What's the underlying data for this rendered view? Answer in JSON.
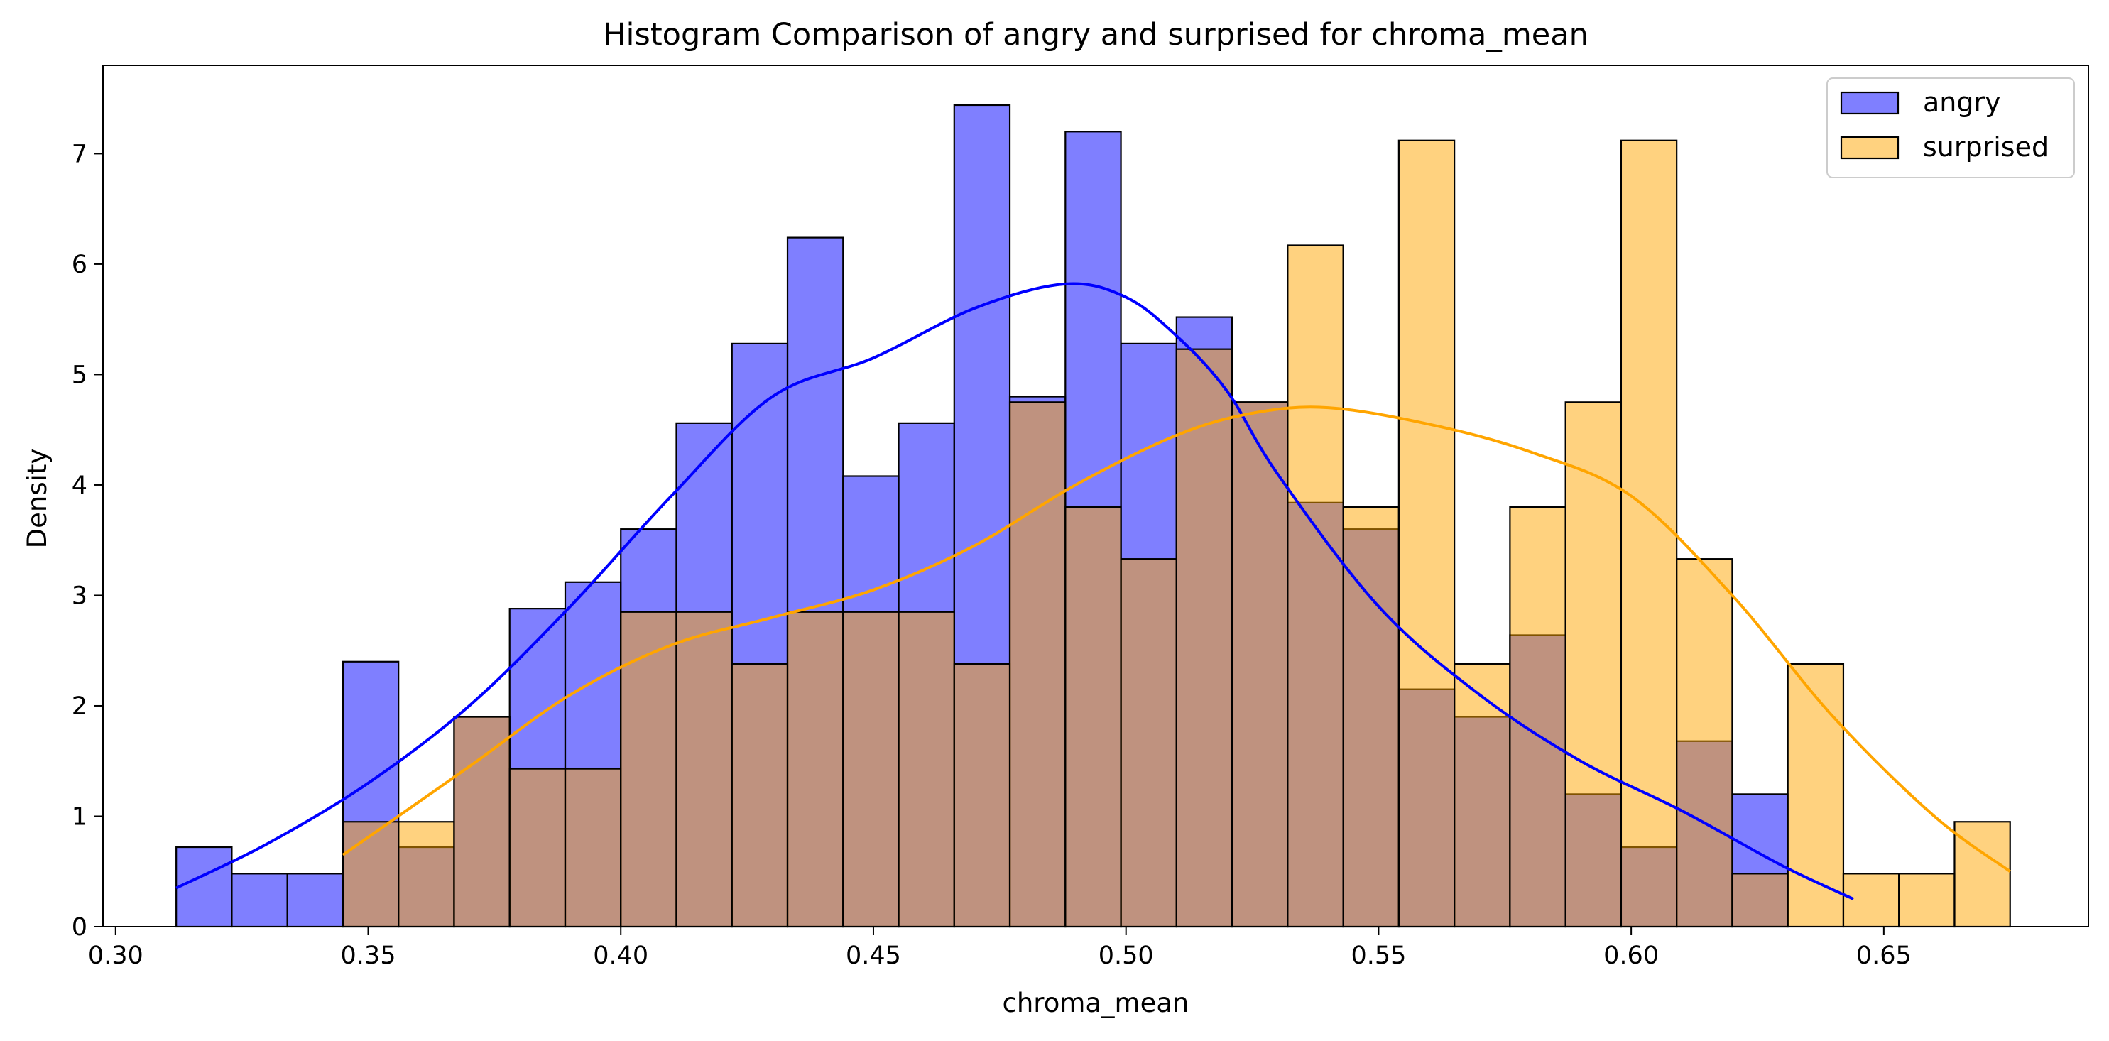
{
  "chart_data": {
    "type": "histogram",
    "title": "Histogram Comparison of angry and surprised for chroma_mean",
    "xlabel": "chroma_mean",
    "ylabel": "Density",
    "xlim": [
      0.2975,
      0.6905
    ],
    "ylim": [
      0,
      7.8
    ],
    "xticks": [
      "0.30",
      "0.35",
      "0.40",
      "0.45",
      "0.50",
      "0.55",
      "0.60",
      "0.65"
    ],
    "yticks": [
      "0",
      "1",
      "2",
      "3",
      "4",
      "5",
      "6",
      "7"
    ],
    "legend_position": "top-right",
    "grid": false,
    "series": [
      {
        "name": "angry",
        "color": "#0000ff",
        "fill": "rgba(0,0,255,0.5)",
        "bin_start": 0.312,
        "bin_width": 0.011,
        "values": [
          0.72,
          0.48,
          0.48,
          2.4,
          0.72,
          1.9,
          2.88,
          3.12,
          3.6,
          4.56,
          5.28,
          6.24,
          4.08,
          4.56,
          7.44,
          4.8,
          7.2,
          5.28,
          5.52,
          4.75,
          3.84,
          3.6,
          2.15,
          1.9,
          2.64,
          1.2,
          0.72,
          1.68,
          1.2
        ],
        "kde_x": [
          0.312,
          0.33,
          0.35,
          0.37,
          0.39,
          0.41,
          0.43,
          0.45,
          0.47,
          0.488,
          0.5,
          0.51,
          0.52,
          0.53,
          0.55,
          0.57,
          0.59,
          0.61,
          0.63,
          0.644
        ],
        "kde_y": [
          0.35,
          0.75,
          1.3,
          2.0,
          2.9,
          3.9,
          4.8,
          5.15,
          5.6,
          5.82,
          5.7,
          5.35,
          4.85,
          4.1,
          2.9,
          2.1,
          1.5,
          1.05,
          0.55,
          0.25
        ]
      },
      {
        "name": "surprised",
        "color": "#ffa500",
        "fill": "rgba(255,165,0,0.5)",
        "bin_start": 0.345,
        "bin_width": 0.011,
        "values": [
          0.95,
          0.95,
          1.9,
          1.43,
          1.43,
          2.85,
          2.85,
          2.38,
          2.85,
          2.85,
          2.85,
          2.38,
          4.75,
          3.8,
          3.33,
          5.23,
          4.75,
          6.17,
          3.8,
          7.12,
          2.38,
          3.8,
          4.75,
          7.12,
          3.33,
          0.48,
          2.38,
          0.48,
          0.48,
          0.95
        ],
        "kde_x": [
          0.345,
          0.37,
          0.39,
          0.41,
          0.43,
          0.45,
          0.47,
          0.49,
          0.51,
          0.525,
          0.54,
          0.56,
          0.58,
          0.6,
          0.62,
          0.64,
          0.66,
          0.675
        ],
        "kde_y": [
          0.65,
          1.45,
          2.1,
          2.55,
          2.8,
          3.05,
          3.45,
          4.0,
          4.45,
          4.65,
          4.7,
          4.55,
          4.3,
          3.9,
          3.0,
          1.9,
          1.0,
          0.5
        ]
      }
    ]
  }
}
